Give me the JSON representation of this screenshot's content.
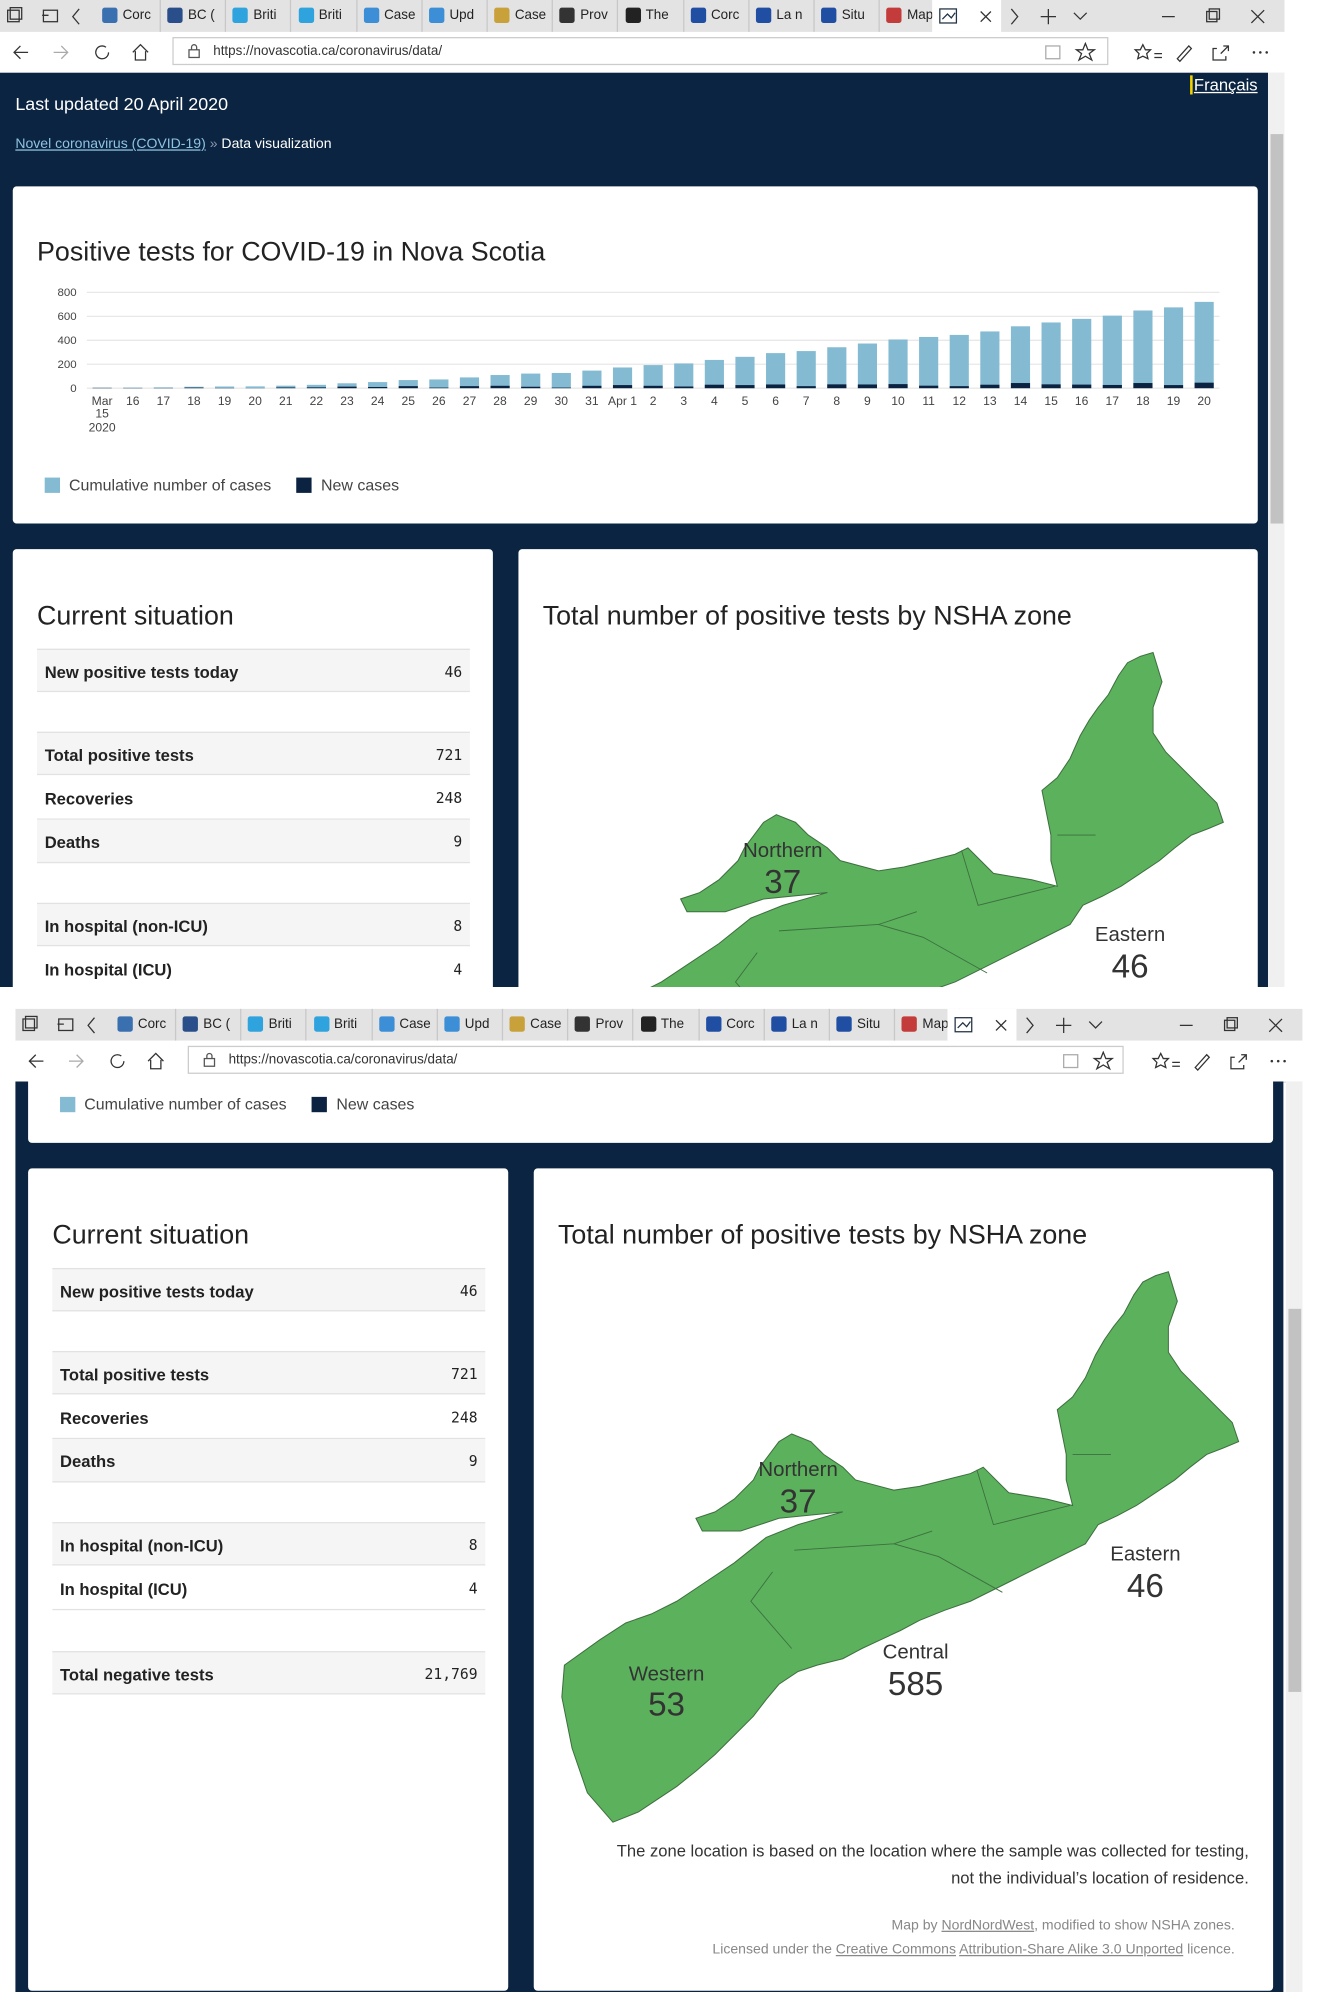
{
  "browser": {
    "tabs": [
      "Corc",
      "BC (",
      "Briti",
      "Briti",
      "Case",
      "Upd",
      "Case",
      "Prov",
      "The",
      "Corc",
      "La n",
      "Situ",
      "Map"
    ],
    "url": "https://novascotia.ca/coronavirus/data/"
  },
  "page": {
    "language_link": "Français",
    "last_updated": "Last updated 20 April 2020",
    "breadcrumb": {
      "parent": "Novel coronavirus (COVID-19)",
      "separator": "»",
      "current": "Data visualization"
    },
    "situation": {
      "title": "Current situation",
      "groups": [
        [
          {
            "label": "New positive tests today",
            "value": "46"
          }
        ],
        [
          {
            "label": "Total positive tests",
            "value": "721"
          },
          {
            "label": "Recoveries",
            "value": "248"
          },
          {
            "label": "Deaths",
            "value": "9"
          }
        ],
        [
          {
            "label": "In hospital (non-ICU)",
            "value": "8"
          },
          {
            "label": "In hospital (ICU)",
            "value": "4"
          }
        ],
        [
          {
            "label": "Total negative tests",
            "value": "21,769"
          }
        ]
      ]
    },
    "map": {
      "title": "Total number of positive tests by NSHA zone",
      "zones": [
        {
          "name": "Northern",
          "value": "37"
        },
        {
          "name": "Eastern",
          "value": "46"
        },
        {
          "name": "Western",
          "value": "53"
        },
        {
          "name": "Central",
          "value": "585"
        }
      ],
      "note_lines": [
        "The zone location is based on the location where the sample was collected for testing,",
        "not the individual’s location of residence."
      ],
      "credit": [
        "Map by",
        "NordNordWest",
        ", modified to show NSHA zones."
      ],
      "licence": [
        "Licensed under the",
        "Creative Commons",
        "Attribution-Share Alike 3.0 Unported",
        "licence."
      ]
    }
  },
  "chart_data": {
    "type": "bar",
    "title": "Positive tests for COVID-19 in Nova Scotia",
    "categories": [
      "Mar 15",
      "16",
      "17",
      "18",
      "19",
      "20",
      "21",
      "22",
      "23",
      "24",
      "25",
      "26",
      "27",
      "28",
      "29",
      "30",
      "31",
      "Apr 1",
      "2",
      "3",
      "4",
      "5",
      "6",
      "7",
      "8",
      "9",
      "10",
      "11",
      "12",
      "13",
      "14",
      "15",
      "16",
      "17",
      "18",
      "19",
      "20"
    ],
    "x_sublabel": "2020",
    "series": [
      {
        "name": "Cumulative number of cases",
        "color": "#84bbd3",
        "values": [
          3,
          5,
          7,
          12,
          14,
          15,
          21,
          28,
          41,
          51,
          68,
          73,
          90,
          110,
          122,
          127,
          147,
          173,
          193,
          207,
          236,
          262,
          293,
          310,
          342,
          373,
          407,
          428,
          445,
          474,
          517,
          549,
          579,
          606,
          649,
          675,
          721
        ]
      },
      {
        "name": "New cases",
        "color": "#0b2341",
        "values": [
          3,
          2,
          2,
          5,
          2,
          1,
          6,
          7,
          13,
          10,
          17,
          5,
          17,
          20,
          12,
          5,
          20,
          26,
          20,
          14,
          29,
          26,
          31,
          17,
          32,
          31,
          34,
          21,
          17,
          29,
          43,
          32,
          30,
          27,
          43,
          26,
          46
        ]
      }
    ],
    "ylim": [
      0,
      800
    ],
    "yticks": [
      0,
      200,
      400,
      600,
      800
    ],
    "grid": true,
    "legend": "bottom-left"
  }
}
